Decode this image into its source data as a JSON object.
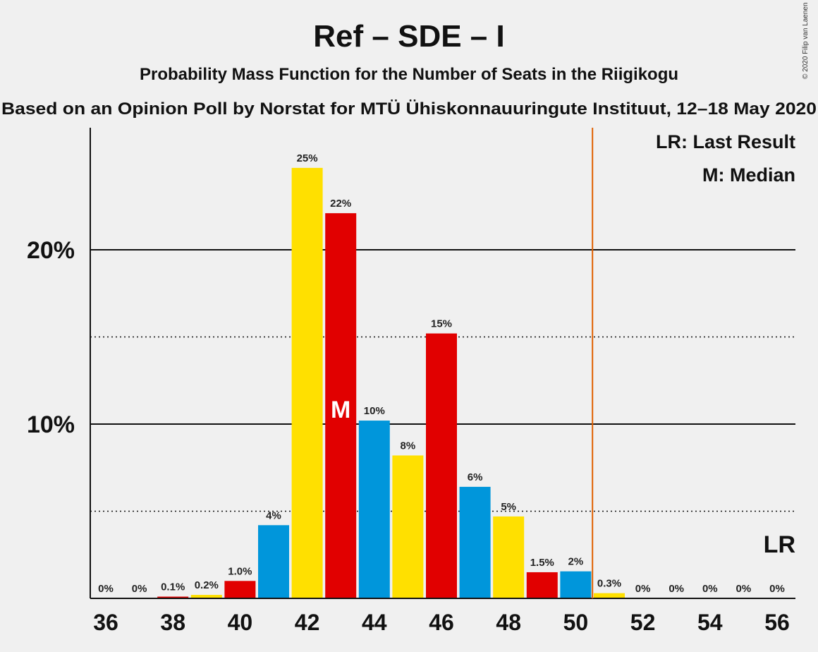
{
  "chart_data": {
    "type": "bar",
    "title": "Ref – SDE – I",
    "subtitle": "Probability Mass Function for the Number of Seats in the Riigikogu",
    "subtitle2": "Based on an Opinion Poll by Norstat for MTÜ Ühiskonnauuringute Instituut, 12–18 May 2020",
    "copyright": "© 2020 Filip van Laenen",
    "legend": [
      "LR: Last Result",
      "M: Median"
    ],
    "median_marker": "M",
    "last_result_marker": "LR",
    "ylim": [
      0,
      27
    ],
    "y_ticks": [
      {
        "value": 10,
        "label": "10%"
      },
      {
        "value": 20,
        "label": "20%"
      }
    ],
    "dotted_gridlines": [
      5,
      15
    ],
    "x_ticks": [
      36,
      38,
      40,
      42,
      44,
      46,
      48,
      50,
      52,
      54,
      56
    ],
    "majority_line_x": 50.5,
    "median_seat": 43,
    "last_result_seat": 56,
    "bars": [
      {
        "x": 36,
        "value": 0,
        "label": "0%",
        "color": "#0096db"
      },
      {
        "x": 37,
        "value": 0,
        "label": "0%",
        "color": "#ffe000"
      },
      {
        "x": 38,
        "value": 0.1,
        "label": "0.1%",
        "color": "#e10000"
      },
      {
        "x": 39,
        "value": 0.2,
        "label": "0.2%",
        "color": "#ffe000"
      },
      {
        "x": 40,
        "value": 1.0,
        "label": "1.0%",
        "color": "#e10000"
      },
      {
        "x": 41,
        "value": 4.2,
        "label": "4%",
        "color": "#0096db"
      },
      {
        "x": 42,
        "value": 24.7,
        "label": "25%",
        "color": "#ffe000"
      },
      {
        "x": 43,
        "value": 22.1,
        "label": "22%",
        "color": "#e10000"
      },
      {
        "x": 44,
        "value": 10.2,
        "label": "10%",
        "color": "#0096db"
      },
      {
        "x": 45,
        "value": 8.2,
        "label": "8%",
        "color": "#ffe000"
      },
      {
        "x": 46,
        "value": 15.2,
        "label": "15%",
        "color": "#e10000"
      },
      {
        "x": 47,
        "value": 6.4,
        "label": "6%",
        "color": "#0096db"
      },
      {
        "x": 48,
        "value": 4.7,
        "label": "5%",
        "color": "#ffe000"
      },
      {
        "x": 49,
        "value": 1.5,
        "label": "1.5%",
        "color": "#e10000"
      },
      {
        "x": 50,
        "value": 1.55,
        "label": "2%",
        "color": "#0096db"
      },
      {
        "x": 51,
        "value": 0.3,
        "label": "0.3%",
        "color": "#ffe000"
      },
      {
        "x": 52,
        "value": 0,
        "label": "0%",
        "color": "#e10000"
      },
      {
        "x": 53,
        "value": 0,
        "label": "0%",
        "color": "#0096db"
      },
      {
        "x": 54,
        "value": 0,
        "label": "0%",
        "color": "#ffe000"
      },
      {
        "x": 55,
        "value": 0,
        "label": "0%",
        "color": "#e10000"
      },
      {
        "x": 56,
        "value": 0,
        "label": "0%",
        "color": "#0096db"
      }
    ],
    "colors": {
      "majority_line": "#e06000",
      "axis": "#111111",
      "background": "#f0f0f0"
    }
  }
}
